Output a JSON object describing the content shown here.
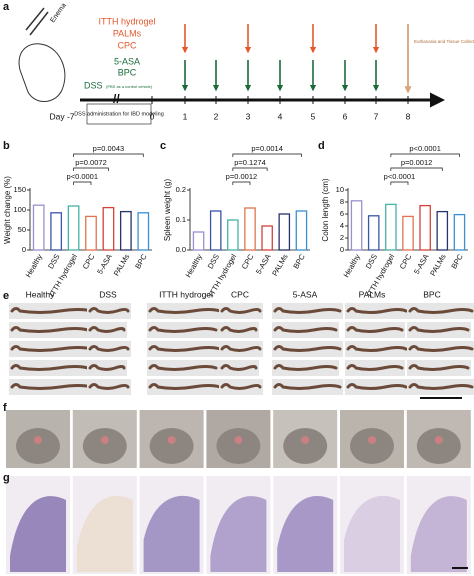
{
  "panel_labels": [
    "a",
    "b",
    "c",
    "d",
    "e",
    "f",
    "g"
  ],
  "timeline": {
    "treatments": [
      "ITTH hydrogel",
      "PALMs",
      "CPC"
    ],
    "controls": [
      "5-ASA",
      "BPC"
    ],
    "dss": "DSS",
    "vehicle_note": "(PBS as a control vehicle)",
    "enema": "Enema",
    "endpoint": "Euthanasia and Tissue Collection",
    "modeling": "DSS administration for IBD modeling",
    "days": [
      "Day -7",
      "0",
      "1",
      "2",
      "3",
      "4",
      "5",
      "6",
      "7",
      "8"
    ]
  },
  "chart_data": [
    {
      "type": "bar",
      "ylabel": "Weight change (%)",
      "categories": [
        "Healthy",
        "DSS",
        "ITTH hydrogel",
        "CPC",
        "5-ASA",
        "PALMs",
        "BPC"
      ],
      "values": [
        112,
        93,
        110,
        84,
        106,
        96,
        93
      ],
      "colors": [
        "#9c8fd0",
        "#3a56a5",
        "#45b3a6",
        "#e0734d",
        "#d6403a",
        "#27336b",
        "#3b8fd4"
      ],
      "ylim": [
        0,
        150
      ],
      "yticks": [
        0,
        50,
        100,
        150
      ],
      "comparisons": [
        "p=0.0043",
        "p=0.0072",
        "p<0.0001"
      ]
    },
    {
      "type": "bar",
      "ylabel": "Spleen weight (g)",
      "categories": [
        "Healthy",
        "DSS",
        "ITTH hydrogel",
        "CPC",
        "5-ASA",
        "PALMs",
        "BPC"
      ],
      "values": [
        0.06,
        0.13,
        0.1,
        0.14,
        0.08,
        0.12,
        0.13
      ],
      "colors": [
        "#9c8fd0",
        "#3a56a5",
        "#45b3a6",
        "#e0734d",
        "#d6403a",
        "#27336b",
        "#3b8fd4"
      ],
      "ylim": [
        0,
        0.2
      ],
      "yticks": [
        {
          "value": 0,
          "label": "0.0"
        },
        0.1,
        0.2
      ],
      "comparisons": [
        "p=0.0014",
        "p=0.1274",
        "p=0.0012"
      ]
    },
    {
      "type": "bar",
      "ylabel": "Colon length (cm)",
      "categories": [
        "Healthy",
        "DSS",
        "ITTH hydrogel",
        "CPC",
        "5-ASA",
        "PALMs",
        "BPC"
      ],
      "values": [
        8.2,
        5.7,
        7.6,
        5.6,
        7.4,
        6.4,
        5.9
      ],
      "colors": [
        "#9c8fd0",
        "#3a56a5",
        "#45b3a6",
        "#e0734d",
        "#d6403a",
        "#27336b",
        "#3b8fd4"
      ],
      "ylim": [
        0,
        10
      ],
      "yticks": [
        0,
        2,
        4,
        6,
        8,
        10
      ],
      "comparisons": [
        "p<0.0001",
        "p=0.0012",
        "p<0.0001"
      ]
    }
  ],
  "panel_e": {
    "labels": [
      "Healthy",
      "DSS",
      "ITTH hydrogel",
      "CPC",
      "5-ASA",
      "PALMs",
      "BPC"
    ]
  }
}
